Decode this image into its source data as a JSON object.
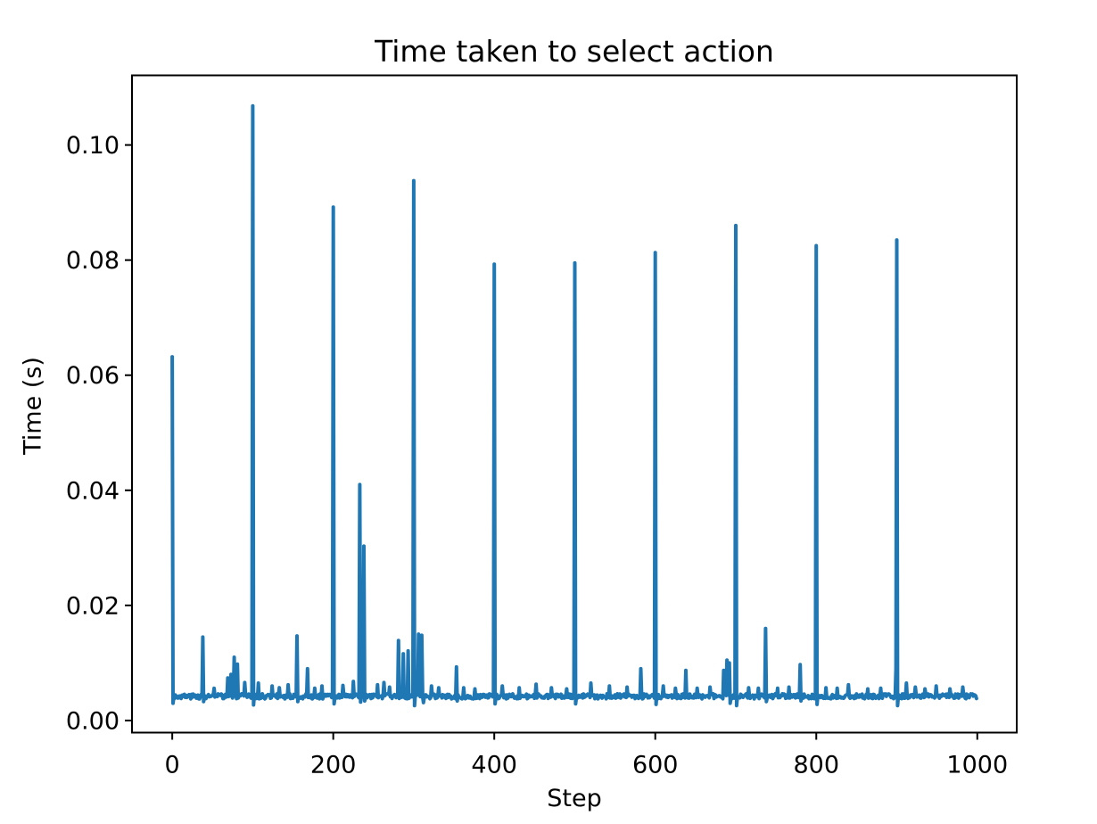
{
  "chart_data": {
    "type": "line",
    "title": "Time taken to select action",
    "xlabel": "Step",
    "ylabel": "Time (s)",
    "x_ticks": [
      0,
      200,
      400,
      600,
      800,
      1000
    ],
    "x_tick_labels": [
      "0",
      "200",
      "400",
      "600",
      "800",
      "1000"
    ],
    "y_ticks": [
      0.0,
      0.02,
      0.04,
      0.06,
      0.08,
      0.1
    ],
    "y_tick_labels": [
      "0.00",
      "0.02",
      "0.04",
      "0.06",
      "0.08",
      "0.10"
    ],
    "xlim": [
      -50,
      1049
    ],
    "ylim": [
      -0.0021,
      0.1121
    ],
    "n_steps": 1000,
    "grid": false,
    "legend": "none",
    "line_color": "#1f77b4",
    "axis_color": "#000000",
    "line_width": 4,
    "baseline": 0.0042,
    "noise_amplitude": 0.00045,
    "noise_seed": 3,
    "major_spikes": [
      [
        0,
        0.0632
      ],
      [
        100,
        0.1068
      ],
      [
        200,
        0.0892
      ],
      [
        300,
        0.0938
      ],
      [
        400,
        0.0793
      ],
      [
        500,
        0.0795
      ],
      [
        600,
        0.0813
      ],
      [
        700,
        0.086
      ],
      [
        800,
        0.0825
      ],
      [
        900,
        0.0835
      ]
    ],
    "minor_spikes": [
      [
        38,
        0.0145
      ],
      [
        52,
        0.0056
      ],
      [
        69,
        0.0074
      ],
      [
        73,
        0.008
      ],
      [
        77,
        0.011
      ],
      [
        81,
        0.0098
      ],
      [
        90,
        0.0066
      ],
      [
        107,
        0.0065
      ],
      [
        124,
        0.006
      ],
      [
        133,
        0.0057
      ],
      [
        144,
        0.0062
      ],
      [
        155,
        0.0147
      ],
      [
        168,
        0.009
      ],
      [
        177,
        0.0056
      ],
      [
        186,
        0.006
      ],
      [
        212,
        0.0061
      ],
      [
        225,
        0.0068
      ],
      [
        233,
        0.041
      ],
      [
        238,
        0.0303
      ],
      [
        255,
        0.0062
      ],
      [
        263,
        0.0066
      ],
      [
        270,
        0.0058
      ],
      [
        281,
        0.0139
      ],
      [
        287,
        0.0116
      ],
      [
        293,
        0.0121
      ],
      [
        306,
        0.015
      ],
      [
        310,
        0.0148
      ],
      [
        322,
        0.006
      ],
      [
        331,
        0.0057
      ],
      [
        353,
        0.0093
      ],
      [
        362,
        0.0057
      ],
      [
        376,
        0.0055
      ],
      [
        410,
        0.006
      ],
      [
        431,
        0.0057
      ],
      [
        452,
        0.0063
      ],
      [
        471,
        0.0057
      ],
      [
        490,
        0.0055
      ],
      [
        520,
        0.0065
      ],
      [
        543,
        0.006
      ],
      [
        565,
        0.0058
      ],
      [
        582,
        0.009
      ],
      [
        610,
        0.006
      ],
      [
        625,
        0.0056
      ],
      [
        638,
        0.0087
      ],
      [
        652,
        0.0056
      ],
      [
        668,
        0.0058
      ],
      [
        685,
        0.0087
      ],
      [
        689,
        0.0105
      ],
      [
        692,
        0.01
      ],
      [
        716,
        0.0057
      ],
      [
        728,
        0.0056
      ],
      [
        737,
        0.016
      ],
      [
        752,
        0.0056
      ],
      [
        766,
        0.0058
      ],
      [
        780,
        0.0097
      ],
      [
        812,
        0.0057
      ],
      [
        826,
        0.0056
      ],
      [
        840,
        0.0062
      ],
      [
        864,
        0.0055
      ],
      [
        880,
        0.0056
      ],
      [
        899,
        0.009
      ],
      [
        912,
        0.0065
      ],
      [
        923,
        0.0058
      ],
      [
        935,
        0.0055
      ],
      [
        949,
        0.006
      ],
      [
        966,
        0.0055
      ],
      [
        982,
        0.0058
      ]
    ],
    "dips": [
      [
        1,
        0.003
      ],
      [
        39,
        0.0033
      ],
      [
        101,
        0.0027
      ],
      [
        156,
        0.0033
      ],
      [
        201,
        0.0029
      ],
      [
        234,
        0.0032
      ],
      [
        239,
        0.0034
      ],
      [
        301,
        0.0026
      ],
      [
        312,
        0.0031
      ],
      [
        354,
        0.0034
      ],
      [
        401,
        0.0029
      ],
      [
        501,
        0.0029
      ],
      [
        601,
        0.0028
      ],
      [
        693,
        0.003
      ],
      [
        701,
        0.0026
      ],
      [
        738,
        0.0033
      ],
      [
        781,
        0.0034
      ],
      [
        801,
        0.0028
      ],
      [
        901,
        0.0026
      ]
    ]
  }
}
